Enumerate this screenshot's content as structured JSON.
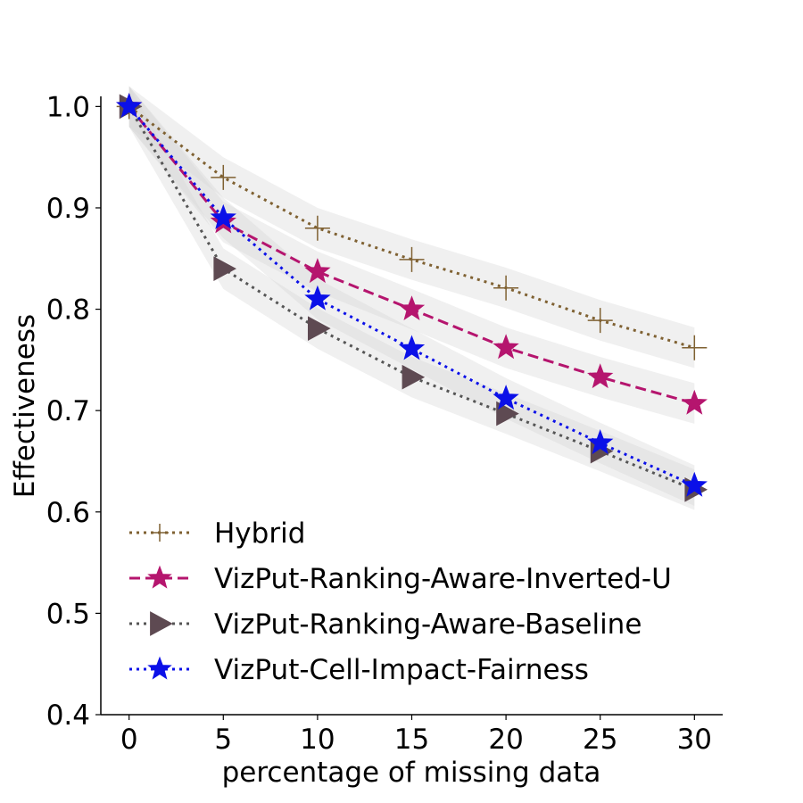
{
  "chart_data": {
    "type": "line",
    "title": "",
    "xlabel": "percentage of missing data",
    "ylabel": "Effectiveness",
    "x": [
      0,
      5,
      10,
      15,
      20,
      25,
      30
    ],
    "xticks": [
      "0",
      "5",
      "10",
      "15",
      "20",
      "25",
      "30"
    ],
    "yticks": [
      "0.4",
      "0.5",
      "0.6",
      "0.7",
      "0.8",
      "0.9",
      "1.0"
    ],
    "xlim": [
      -1.5,
      31.5
    ],
    "ylim": [
      0.4,
      1.01
    ],
    "grid": false,
    "legend_position": "lower-left",
    "series": [
      {
        "name": "Hybrid",
        "values": [
          1.0,
          0.93,
          0.88,
          0.849,
          0.821,
          0.789,
          0.762
        ],
        "band": [
          0.02,
          0.02,
          0.02,
          0.02,
          0.02,
          0.02,
          0.02
        ],
        "color": "#7f6132",
        "dash": "dotted",
        "marker": "plus"
      },
      {
        "name": "VizPut-Ranking-Aware-Inverted-U",
        "values": [
          1.0,
          0.886,
          0.837,
          0.8,
          0.762,
          0.733,
          0.707
        ],
        "band": [
          0.02,
          0.02,
          0.02,
          0.02,
          0.02,
          0.02,
          0.02
        ],
        "color": "#b5156e",
        "dash": "dashed",
        "marker": "star"
      },
      {
        "name": "VizPut-Ranking-Aware-Baseline",
        "values": [
          1.0,
          0.84,
          0.781,
          0.733,
          0.697,
          0.66,
          0.622
        ],
        "band": [
          0.02,
          0.02,
          0.02,
          0.02,
          0.02,
          0.02,
          0.02
        ],
        "color": "#5e4a52",
        "line_color": "#555555",
        "dash": "dotted",
        "marker": "triangle-right"
      },
      {
        "name": "VizPut-Cell-Impact-Fairness",
        "values": [
          1.0,
          0.89,
          0.81,
          0.761,
          0.712,
          0.668,
          0.626
        ],
        "band": [
          0.02,
          0.02,
          0.02,
          0.02,
          0.02,
          0.02,
          0.02
        ],
        "color": "#0b10e8",
        "dash": "dotted",
        "marker": "star"
      }
    ]
  }
}
